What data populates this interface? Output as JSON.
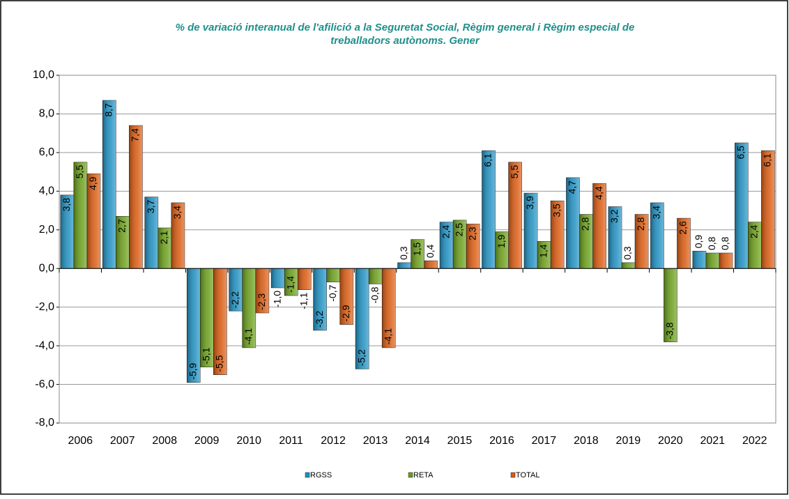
{
  "chart_data": {
    "type": "bar",
    "title": [
      "% de variació interanual de l'afilició a la Seguretat Social, Règim general i Règim especial de",
      "treballadors autònoms. Gener"
    ],
    "categories": [
      "2006",
      "2007",
      "2008",
      "2009",
      "2010",
      "2011",
      "2012",
      "2013",
      "2014",
      "2015",
      "2016",
      "2017",
      "2018",
      "2019",
      "2020",
      "2021",
      "2022"
    ],
    "series": [
      {
        "name": "RGSS",
        "color": "#1f8fc0",
        "values": [
          3.8,
          8.7,
          3.7,
          -5.9,
          -2.2,
          -1.0,
          -3.2,
          -5.2,
          0.3,
          2.4,
          6.1,
          3.9,
          4.7,
          3.2,
          3.4,
          0.9,
          6.5
        ],
        "value_labels": [
          "3,8",
          "8,7",
          "3,7",
          "-5,9",
          "-2,2",
          "-1,0",
          "-3,2",
          "-5,2",
          "0,3",
          "2,4",
          "6,1",
          "3,9",
          "4,7",
          "3,2",
          "3,4",
          "0,9",
          "6,5"
        ]
      },
      {
        "name": "RETA",
        "color": "#6a9e1a",
        "values": [
          5.5,
          2.7,
          2.1,
          -5.1,
          -4.1,
          -1.4,
          -0.7,
          -0.8,
          1.5,
          2.5,
          1.9,
          1.4,
          2.8,
          0.3,
          -3.8,
          0.8,
          2.4
        ],
        "value_labels": [
          "5,5",
          "2,7",
          "2,1",
          "-5,1",
          "-4,1",
          "-1,4",
          "-0,7",
          "-0,8",
          "1,5",
          "2,5",
          "1,9",
          "1,4",
          "2,8",
          "0,3",
          "-3,8",
          "0,8",
          "2,4"
        ]
      },
      {
        "name": "TOTAL",
        "color": "#d95a10",
        "values": [
          4.9,
          7.4,
          3.4,
          -5.5,
          -2.3,
          -1.1,
          -2.9,
          -4.1,
          0.4,
          2.3,
          5.5,
          3.5,
          4.4,
          2.8,
          2.6,
          0.8,
          6.1
        ],
        "value_labels": [
          "4,9",
          "7,4",
          "3,4",
          "-5,5",
          "-2,3",
          "-1,1",
          "-2,9",
          "-4,1",
          "0,4",
          "2,3",
          "5,5",
          "3,5",
          "4,4",
          "2,8",
          "2,6",
          "0,8",
          "6,1"
        ]
      }
    ],
    "ylim": [
      -8,
      10
    ],
    "yticks": [
      {
        "value": -8,
        "label": "-8,0"
      },
      {
        "value": -6,
        "label": "-6,0"
      },
      {
        "value": -4,
        "label": "-4,0"
      },
      {
        "value": -2,
        "label": "-2,0"
      },
      {
        "value": 0,
        "label": "0,0"
      },
      {
        "value": 2,
        "label": "2,0"
      },
      {
        "value": 4,
        "label": "4,0"
      },
      {
        "value": 6,
        "label": "6,0"
      },
      {
        "value": 8,
        "label": "8,0"
      },
      {
        "value": 10,
        "label": "10,0"
      }
    ],
    "grid": true,
    "legend": "bottom"
  }
}
